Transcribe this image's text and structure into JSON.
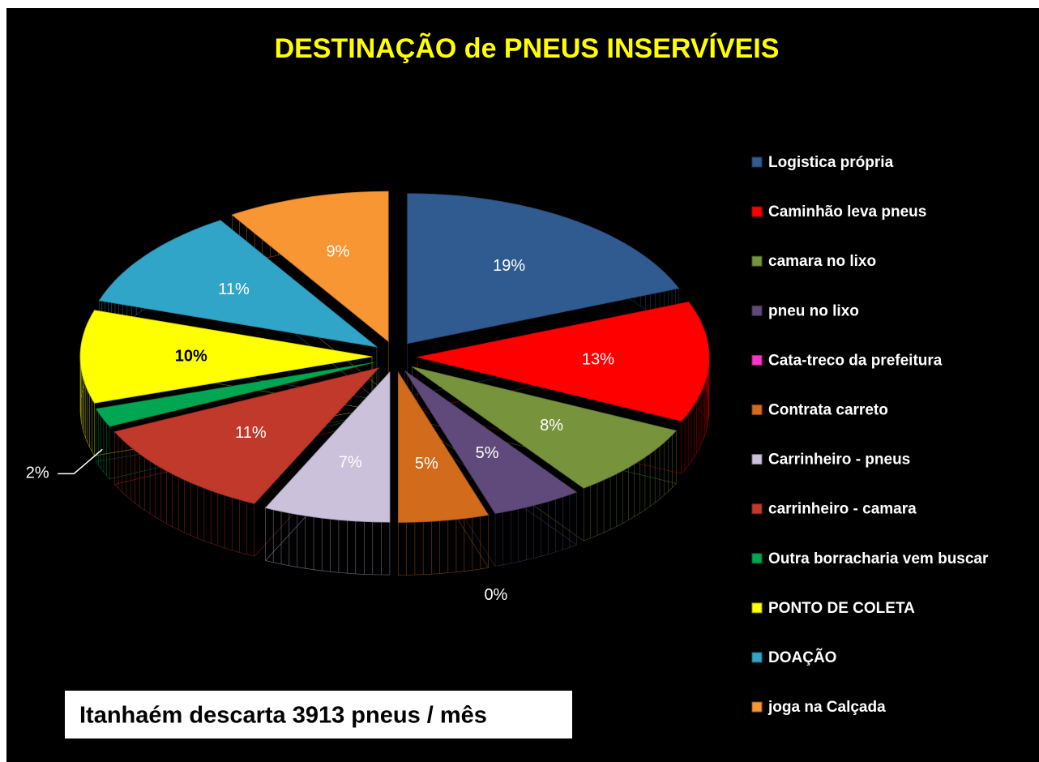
{
  "chart_data": {
    "type": "pie3d",
    "title": "DESTINAÇÃO de PNEUS INSERVÍVEIS",
    "categories": [
      "Logistica própria",
      "Caminhão leva pneus",
      "camara no lixo",
      "pneu no lixo",
      "Cata-treco da prefeitura",
      "Contrata carreto",
      "Carrinheiro - pneus",
      "carrinheiro - camara",
      "Outra borracharia vem buscar",
      "PONTO DE COLETA",
      "DOAÇÃO",
      "joga na Calçada"
    ],
    "values": [
      19,
      13,
      8,
      5,
      0,
      5,
      7,
      11,
      2,
      10,
      11,
      9
    ],
    "value_labels": [
      "19%",
      "13%",
      "8%",
      "5%",
      "0%",
      "5%",
      "7%",
      "11%",
      "2%",
      "10%",
      "11%",
      "9%"
    ],
    "colors": [
      "#2f5b90",
      "#ff0000",
      "#77933c",
      "#604a7b",
      "#ff33cc",
      "#d26b1c",
      "#ccc1da",
      "#c0392b",
      "#00a651",
      "#ffff00",
      "#31a5c8",
      "#f79633"
    ],
    "legend": "right",
    "annotation": "Itanhaém descarta 3913 pneus / mês"
  }
}
